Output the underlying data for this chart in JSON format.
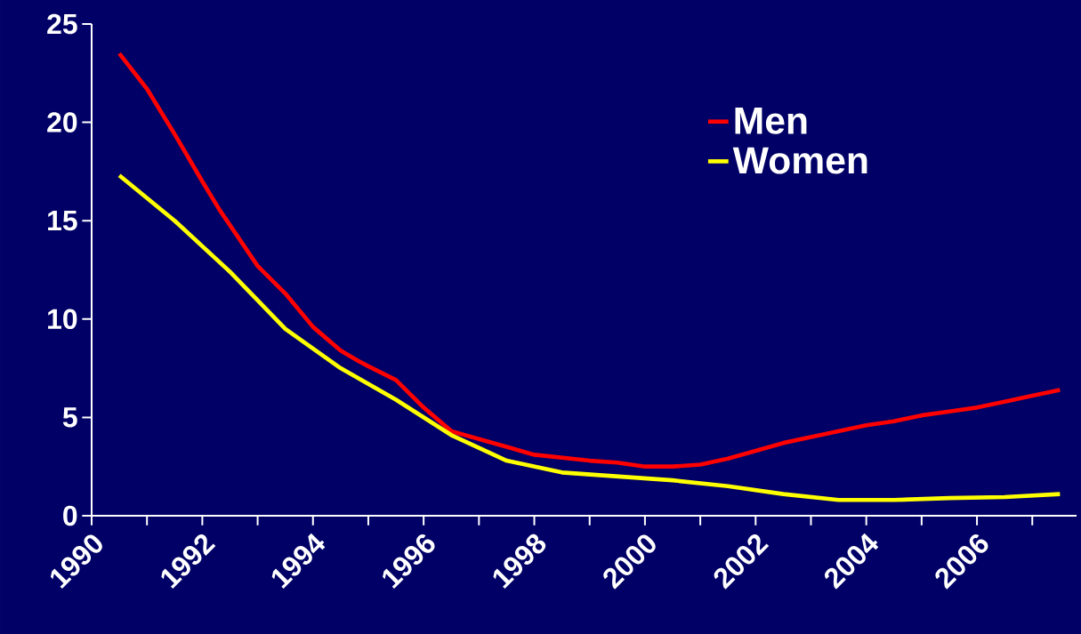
{
  "chart_data": {
    "type": "line",
    "x": [
      1990.5,
      1991,
      1991.5,
      1992,
      1992.3,
      1993,
      1993.5,
      1994,
      1994.5,
      1994.8,
      1995,
      1995.5,
      1996,
      1996.5,
      1997,
      1997.5,
      1998,
      1998.5,
      1999,
      1999.5,
      2000,
      2000.5,
      2001,
      2001.5,
      2002,
      2002.5,
      2003,
      2003.5,
      2004,
      2004.5,
      2005,
      2005.5,
      2006,
      2006.5,
      2007,
      2007.5
    ],
    "series": [
      {
        "name": "Men",
        "color": "#ff0000",
        "values": [
          23.5,
          21.7,
          19.4,
          17.0,
          15.6,
          12.7,
          11.3,
          9.6,
          8.4,
          7.9,
          7.6,
          6.9,
          5.5,
          4.3,
          3.9,
          3.5,
          3.1,
          2.95,
          2.8,
          2.7,
          2.5,
          2.5,
          2.6,
          2.9,
          3.3,
          3.7,
          4.0,
          4.3,
          4.6,
          4.8,
          5.1,
          5.3,
          5.5,
          5.8,
          6.1,
          6.4
        ]
      },
      {
        "name": "Women",
        "color": "#ffff00",
        "x": [
          1990.5,
          1991.5,
          1992.5,
          1993.5,
          1994.5,
          1995.5,
          1996.5,
          1997.5,
          1998.5,
          1999.5,
          2000.5,
          2001.5,
          2002.5,
          2003.5,
          2004.5,
          2005.5,
          2006.5,
          2007.5
        ],
        "values": [
          17.3,
          15.0,
          12.4,
          9.5,
          7.5,
          5.9,
          4.1,
          2.8,
          2.2,
          2.0,
          1.8,
          1.5,
          1.1,
          0.8,
          0.8,
          0.9,
          0.95,
          1.1
        ]
      }
    ],
    "xlim": [
      1990,
      2007.8
    ],
    "xticks": [
      1990,
      {
        "value": 1991,
        "label": null
      },
      1992,
      {
        "value": 1993,
        "label": null
      },
      1994,
      {
        "value": 1995,
        "label": null
      },
      1996,
      {
        "value": 1997,
        "label": null
      },
      1998,
      {
        "value": 1999,
        "label": null
      },
      2000,
      {
        "value": 2001,
        "label": null
      },
      2002,
      {
        "value": 2003,
        "label": null
      },
      2004,
      {
        "value": 2005,
        "label": null
      },
      2006,
      {
        "value": 2007,
        "label": null
      }
    ],
    "ylim": [
      0,
      25
    ],
    "yticks": [
      0,
      5,
      10,
      15,
      20,
      25
    ],
    "grid": false,
    "legend": "top right",
    "marker": "none",
    "line_style": "solid"
  }
}
